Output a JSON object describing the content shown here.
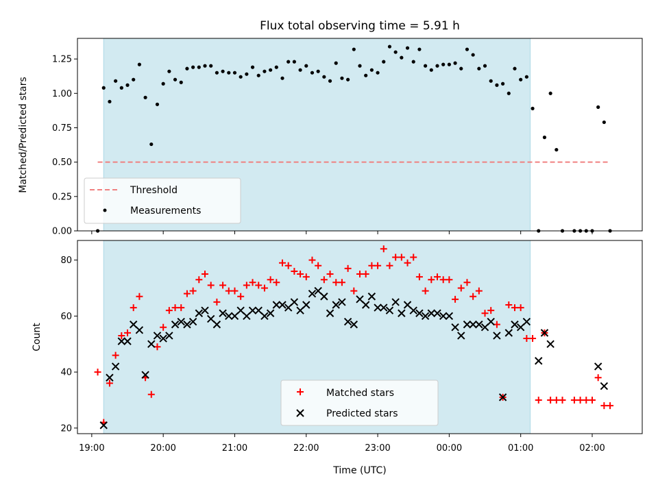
{
  "colors": {
    "observing_span": "#add8e6",
    "threshold": "#f08080",
    "measurements": "#000000",
    "matched": "#ff0000",
    "predicted": "#000000"
  },
  "chart_data": [
    {
      "type": "scatter",
      "title": "Flux total observing time = 5.91 h",
      "xlabel": "",
      "ylabel": "Matched/Predicted stars",
      "xlim": [
        "18:48",
        "02:42"
      ],
      "ylim": [
        0,
        1.4
      ],
      "yticks": [
        0.0,
        0.25,
        0.5,
        0.75,
        1.0,
        1.25
      ],
      "ytick_labels": [
        "0.00",
        "0.25",
        "0.50",
        "0.75",
        "1.00",
        "1.25"
      ],
      "observing_span": [
        "19:10",
        "01:08"
      ],
      "threshold": {
        "label": "Threshold",
        "value": 0.5,
        "x": [
          "19:05",
          "02:15"
        ]
      },
      "legend": [
        "Threshold",
        "Measurements"
      ],
      "legend_position": "lower-left",
      "series": [
        {
          "name": "Measurements",
          "x": [
            "19:05",
            "19:10",
            "19:15",
            "19:20",
            "19:25",
            "19:30",
            "19:35",
            "19:40",
            "19:45",
            "19:50",
            "19:55",
            "20:00",
            "20:05",
            "20:10",
            "20:15",
            "20:20",
            "20:25",
            "20:30",
            "20:35",
            "20:40",
            "20:45",
            "20:50",
            "20:55",
            "21:00",
            "21:05",
            "21:10",
            "21:15",
            "21:20",
            "21:25",
            "21:30",
            "21:35",
            "21:40",
            "21:45",
            "21:50",
            "21:55",
            "22:00",
            "22:05",
            "22:10",
            "22:15",
            "22:20",
            "22:25",
            "22:30",
            "22:35",
            "22:40",
            "22:45",
            "22:50",
            "22:55",
            "23:00",
            "23:05",
            "23:10",
            "23:15",
            "23:20",
            "23:25",
            "23:30",
            "23:35",
            "23:40",
            "23:45",
            "23:50",
            "23:55",
            "00:00",
            "00:05",
            "00:10",
            "00:15",
            "00:20",
            "00:25",
            "00:30",
            "00:35",
            "00:40",
            "00:45",
            "00:50",
            "00:55",
            "01:00",
            "01:05",
            "01:10",
            "01:15",
            "01:20",
            "01:25",
            "01:30",
            "01:35",
            "01:45",
            "01:50",
            "01:55",
            "02:00",
            "02:05",
            "02:10",
            "02:15"
          ],
          "values": [
            0.0,
            1.04,
            0.94,
            1.09,
            1.04,
            1.06,
            1.1,
            1.21,
            0.97,
            0.63,
            0.92,
            1.07,
            1.16,
            1.1,
            1.08,
            1.18,
            1.19,
            1.19,
            1.2,
            1.2,
            1.15,
            1.16,
            1.15,
            1.15,
            1.12,
            1.14,
            1.19,
            1.13,
            1.16,
            1.17,
            1.19,
            1.11,
            1.23,
            1.23,
            1.17,
            1.2,
            1.15,
            1.16,
            1.12,
            1.09,
            1.22,
            1.11,
            1.1,
            1.32,
            1.2,
            1.13,
            1.17,
            1.15,
            1.23,
            1.34,
            1.3,
            1.26,
            1.33,
            1.23,
            1.32,
            1.2,
            1.17,
            1.2,
            1.21,
            1.21,
            1.22,
            1.18,
            1.32,
            1.28,
            1.18,
            1.2,
            1.09,
            1.06,
            1.07,
            1.0,
            1.18,
            1.1,
            1.12,
            0.89,
            0.0,
            0.68,
            1.0,
            0.59,
            0.0,
            0.0,
            0.0,
            0.0,
            0.0,
            0.9,
            0.79,
            0.0
          ]
        }
      ]
    },
    {
      "type": "scatter",
      "title": "",
      "xlabel": "Time (UTC)",
      "ylabel": "Count",
      "xlim": [
        "18:48",
        "02:42"
      ],
      "ylim": [
        18,
        87
      ],
      "yticks": [
        20,
        40,
        60,
        80
      ],
      "ytick_labels": [
        "20",
        "40",
        "60",
        "80"
      ],
      "xticks": [
        "19:00",
        "20:00",
        "21:00",
        "22:00",
        "23:00",
        "00:00",
        "01:00",
        "02:00"
      ],
      "observing_span": [
        "19:10",
        "01:08"
      ],
      "legend": [
        "Matched stars",
        "Predicted stars"
      ],
      "legend_position": "lower-center",
      "series": [
        {
          "name": "Matched stars",
          "x": [
            "19:05",
            "19:10",
            "19:15",
            "19:20",
            "19:25",
            "19:30",
            "19:35",
            "19:40",
            "19:45",
            "19:50",
            "19:55",
            "20:00",
            "20:05",
            "20:10",
            "20:15",
            "20:20",
            "20:25",
            "20:30",
            "20:35",
            "20:40",
            "20:45",
            "20:50",
            "20:55",
            "21:00",
            "21:05",
            "21:10",
            "21:15",
            "21:20",
            "21:25",
            "21:30",
            "21:35",
            "21:40",
            "21:45",
            "21:50",
            "21:55",
            "22:00",
            "22:05",
            "22:10",
            "22:15",
            "22:20",
            "22:25",
            "22:30",
            "22:35",
            "22:40",
            "22:45",
            "22:50",
            "22:55",
            "23:00",
            "23:05",
            "23:10",
            "23:15",
            "23:20",
            "23:25",
            "23:30",
            "23:35",
            "23:40",
            "23:45",
            "23:50",
            "23:55",
            "00:00",
            "00:05",
            "00:10",
            "00:15",
            "00:20",
            "00:25",
            "00:30",
            "00:35",
            "00:40",
            "00:45",
            "00:50",
            "00:55",
            "01:00",
            "01:05",
            "01:10",
            "01:15",
            "01:20",
            "01:25",
            "01:30",
            "01:35",
            "01:45",
            "01:50",
            "01:55",
            "02:00",
            "02:05",
            "02:10",
            "02:15"
          ],
          "values": [
            40,
            22,
            36,
            46,
            53,
            54,
            63,
            67,
            38,
            32,
            49,
            56,
            62,
            63,
            63,
            68,
            69,
            73,
            75,
            71,
            65,
            71,
            69,
            69,
            67,
            71,
            72,
            71,
            70,
            73,
            72,
            79,
            78,
            76,
            75,
            74,
            80,
            78,
            73,
            75,
            72,
            72,
            77,
            69,
            75,
            75,
            78,
            78,
            84,
            78,
            81,
            81,
            79,
            81,
            74,
            69,
            73,
            74,
            73,
            73,
            66,
            70,
            72,
            67,
            69,
            61,
            62,
            57,
            31,
            64,
            63,
            63,
            52,
            52,
            30,
            54,
            30,
            30,
            30,
            30,
            30,
            30,
            30,
            38,
            28,
            28
          ]
        },
        {
          "name": "Predicted stars",
          "x": [
            "19:10",
            "19:15",
            "19:20",
            "19:25",
            "19:30",
            "19:35",
            "19:40",
            "19:45",
            "19:50",
            "19:55",
            "20:00",
            "20:05",
            "20:10",
            "20:15",
            "20:20",
            "20:25",
            "20:30",
            "20:35",
            "20:40",
            "20:45",
            "20:50",
            "20:55",
            "21:00",
            "21:05",
            "21:10",
            "21:15",
            "21:20",
            "21:25",
            "21:30",
            "21:35",
            "21:40",
            "21:45",
            "21:50",
            "21:55",
            "22:00",
            "22:05",
            "22:10",
            "22:15",
            "22:20",
            "22:25",
            "22:30",
            "22:35",
            "22:40",
            "22:45",
            "22:50",
            "22:55",
            "23:00",
            "23:05",
            "23:10",
            "23:15",
            "23:20",
            "23:25",
            "23:30",
            "23:35",
            "23:40",
            "23:45",
            "23:50",
            "23:55",
            "00:00",
            "00:05",
            "00:10",
            "00:15",
            "00:20",
            "00:25",
            "00:30",
            "00:35",
            "00:40",
            "00:45",
            "00:50",
            "00:55",
            "01:00",
            "01:05",
            "01:15",
            "01:20",
            "01:25",
            "02:05",
            "02:10"
          ],
          "values": [
            21,
            38,
            42,
            51,
            51,
            57,
            55,
            39,
            50,
            53,
            52,
            53,
            57,
            58,
            57,
            58,
            61,
            62,
            59,
            57,
            61,
            60,
            60,
            62,
            60,
            62,
            62,
            60,
            61,
            64,
            64,
            63,
            65,
            62,
            64,
            68,
            69,
            67,
            61,
            64,
            65,
            58,
            57,
            66,
            64,
            67,
            63,
            63,
            62,
            65,
            61,
            64,
            62,
            61,
            60,
            61,
            61,
            60,
            60,
            56,
            53,
            57,
            57,
            57,
            56,
            58,
            53,
            31,
            54,
            57,
            56,
            58,
            44,
            54,
            50,
            42,
            35
          ]
        }
      ]
    }
  ]
}
